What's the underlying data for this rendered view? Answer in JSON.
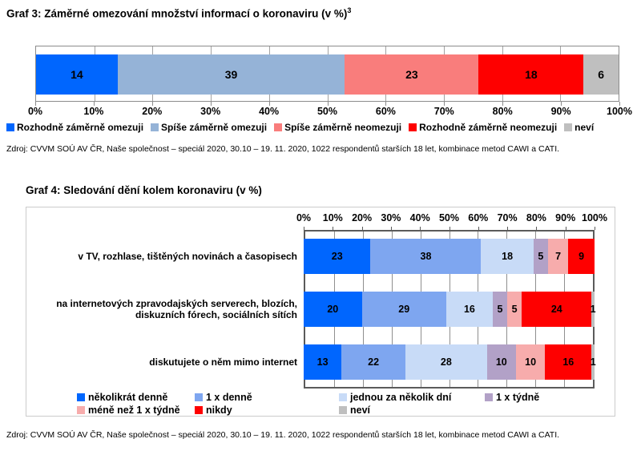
{
  "source_note": "Zdroj: CVVM SOÚ AV ČR, Naše společnost – speciál 2020, 30.10 – 19. 11. 2020, 1022 respondentů starších 18 let, kombinace metod CAWI a CATI.",
  "chart_data": [
    {
      "id": "graf3",
      "type": "bar",
      "stacked": true,
      "orientation": "horizontal",
      "title": "Graf 3: Záměrné omezování množství informací o koronaviru (v %)",
      "title_superscript": "3",
      "unit": "%",
      "xlim": [
        0,
        100
      ],
      "grid": true,
      "axis_position": "bottom",
      "tick_labels": [
        "0%",
        "10%",
        "20%",
        "30%",
        "40%",
        "50%",
        "60%",
        "70%",
        "80%",
        "90%",
        "100%"
      ],
      "categories": [
        ""
      ],
      "series": [
        {
          "name": "Rozhodně záměrně omezuji",
          "color": "#0066FE",
          "values": [
            14
          ]
        },
        {
          "name": "Spíše záměrně omezuji",
          "color": "#95B3D7",
          "values": [
            39
          ]
        },
        {
          "name": "Spíše záměrně neomezuji",
          "color": "#F97D7C",
          "values": [
            23
          ]
        },
        {
          "name": "Rozhodně záměrně neomezuji",
          "color": "#FE0000",
          "values": [
            18
          ]
        },
        {
          "name": "neví",
          "color": "#BFBFBF",
          "values": [
            6
          ]
        }
      ],
      "legend_position": "bottom"
    },
    {
      "id": "graf4",
      "type": "bar",
      "stacked": true,
      "orientation": "horizontal",
      "title": "Graf 4: Sledování dění kolem koronaviru (v %)",
      "unit": "%",
      "xlim": [
        0,
        100
      ],
      "grid": true,
      "axis_position": "top",
      "tick_labels": [
        "0%",
        "10%",
        "20%",
        "30%",
        "40%",
        "50%",
        "60%",
        "70%",
        "80%",
        "90%",
        "100%"
      ],
      "categories": [
        "v TV, rozhlase, tištěných novinách a časopisech",
        "na internetových zpravodajských serverech, blozích, diskuzních fórech, sociálních sítích",
        "diskutujete o něm mimo internet"
      ],
      "series": [
        {
          "name": "několikrát denně",
          "color": "#0066FE",
          "values": [
            23,
            20,
            13
          ]
        },
        {
          "name": "1 x denně",
          "color": "#7EA6F0",
          "values": [
            38,
            29,
            22
          ]
        },
        {
          "name": "jednou za několik dní",
          "color": "#C8DBF7",
          "values": [
            18,
            16,
            28
          ]
        },
        {
          "name": "1 x týdně",
          "color": "#B2A1C7",
          "values": [
            5,
            5,
            10
          ]
        },
        {
          "name": "méně než 1 x týdně",
          "color": "#F7ACAC",
          "values": [
            7,
            5,
            10
          ]
        },
        {
          "name": "nikdy",
          "color": "#FE0000",
          "values": [
            9,
            24,
            16
          ]
        },
        {
          "name": "neví",
          "color": "#BFBFBF",
          "values": [
            0,
            1,
            1
          ]
        }
      ],
      "legend_position": "bottom-inside"
    }
  ]
}
